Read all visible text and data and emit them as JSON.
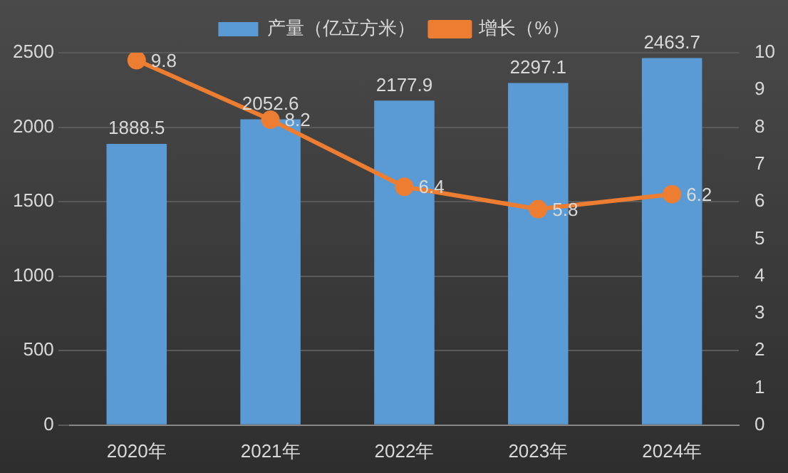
{
  "chart_data": {
    "type": "bar",
    "categories": [
      "2020年",
      "2021年",
      "2022年",
      "2023年",
      "2024年"
    ],
    "series": [
      {
        "name": "产量（亿立方米）",
        "color": "#5b9bd5",
        "values": [
          1888.5,
          2052.6,
          2177.9,
          2297.1,
          2463.7
        ]
      },
      {
        "name": "增长（%）",
        "type": "line",
        "axis": "y2",
        "color": "#ed7d31",
        "values": [
          9.8,
          8.2,
          6.4,
          5.8,
          6.2
        ]
      }
    ],
    "ylim": [
      0,
      2500
    ],
    "yticks": [
      0,
      500,
      1000,
      1500,
      2000,
      2500
    ],
    "y2lim": [
      0,
      10
    ],
    "y2ticks": [
      0,
      1,
      2,
      3,
      4,
      5,
      6,
      7,
      8,
      9,
      10
    ],
    "grid": "y",
    "legend": "top",
    "marker": "circle",
    "data_labels": true
  }
}
